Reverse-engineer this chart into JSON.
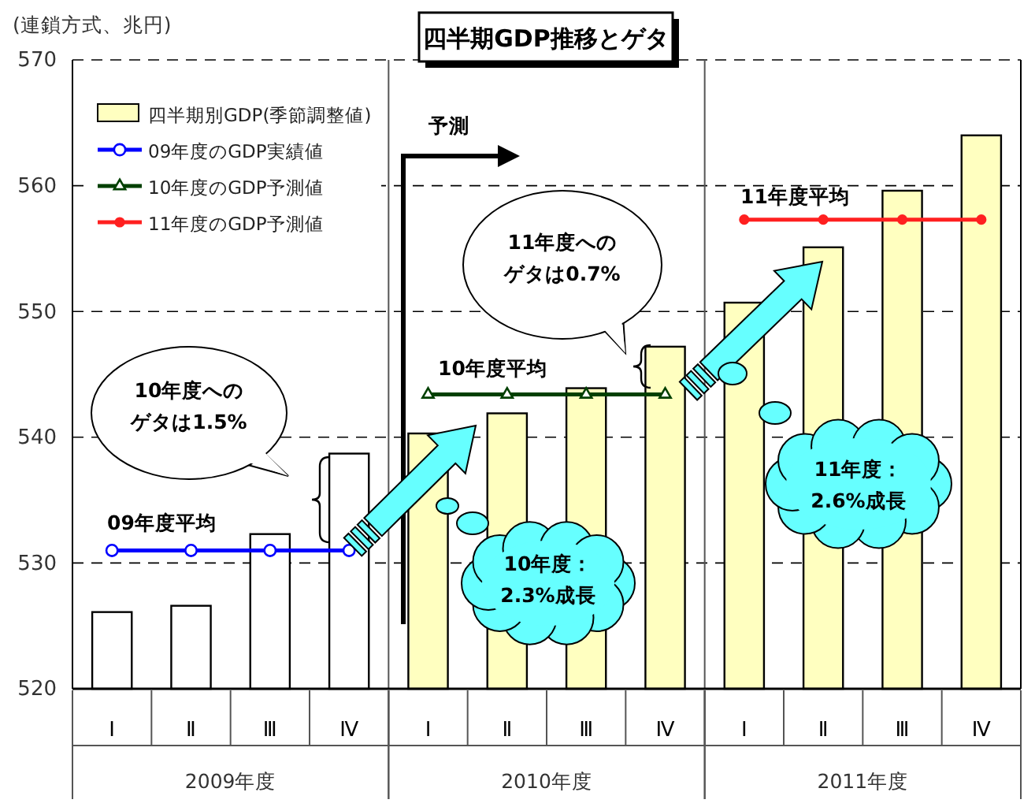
{
  "chart_data": {
    "type": "bar",
    "title": "四半期GDP推移とゲタ",
    "ylabel": "(連鎖方式、兆円)",
    "categories": [
      "Ⅰ",
      "Ⅱ",
      "Ⅲ",
      "Ⅳ",
      "Ⅰ",
      "Ⅱ",
      "Ⅲ",
      "Ⅳ",
      "Ⅰ",
      "Ⅱ",
      "Ⅲ",
      "Ⅳ"
    ],
    "ylim": [
      520,
      570
    ],
    "yticks": [
      520,
      530,
      540,
      550,
      560,
      570
    ],
    "grid": "y",
    "legend": "top left",
    "series": [
      {
        "name": "四半期別GDP(季節調整値)",
        "color": "#ffffc0",
        "colors": [
          "#ffffff",
          "#ffffff",
          "#ffffff",
          "#ffffff",
          "#ffffc0",
          "#ffffc0",
          "#ffffc0",
          "#ffffc0",
          "#ffffc0",
          "#ffffc0",
          "#ffffc0",
          "#ffffc0"
        ],
        "values": [
          526.1,
          526.6,
          532.3,
          538.7,
          540.3,
          541.9,
          543.9,
          547.2,
          550.7,
          555.1,
          559.6,
          564.0
        ]
      },
      {
        "name": "09年度のGDP実績値",
        "type": "line",
        "color": "#0000ff",
        "marker": "circle",
        "values": [
          531.0,
          531.0,
          531.0,
          531.0,
          null,
          null,
          null,
          null,
          null,
          null,
          null,
          null
        ]
      },
      {
        "name": "10年度のGDP予測値",
        "type": "line",
        "color": "#004000",
        "marker": "triangle",
        "values": [
          null,
          null,
          null,
          null,
          543.4,
          543.4,
          543.4,
          543.4,
          null,
          null,
          null,
          null
        ]
      },
      {
        "name": "11年度のGDP予測値",
        "type": "line",
        "color": "#ff2020",
        "marker": "circle",
        "values": [
          null,
          null,
          null,
          null,
          null,
          null,
          null,
          null,
          557.3,
          557.3,
          557.3,
          557.3
        ]
      }
    ],
    "annotations": [
      "予測",
      "09年度平均",
      "10年度平均",
      "11年度平均",
      "10年度への",
      "ゲタは1.5%",
      "11年度への",
      "ゲタは0.7%",
      "10年度：",
      "2.3%成長",
      "11年度：",
      "2.6%成長",
      "2009年度",
      "2010年度",
      "2011年度"
    ]
  }
}
